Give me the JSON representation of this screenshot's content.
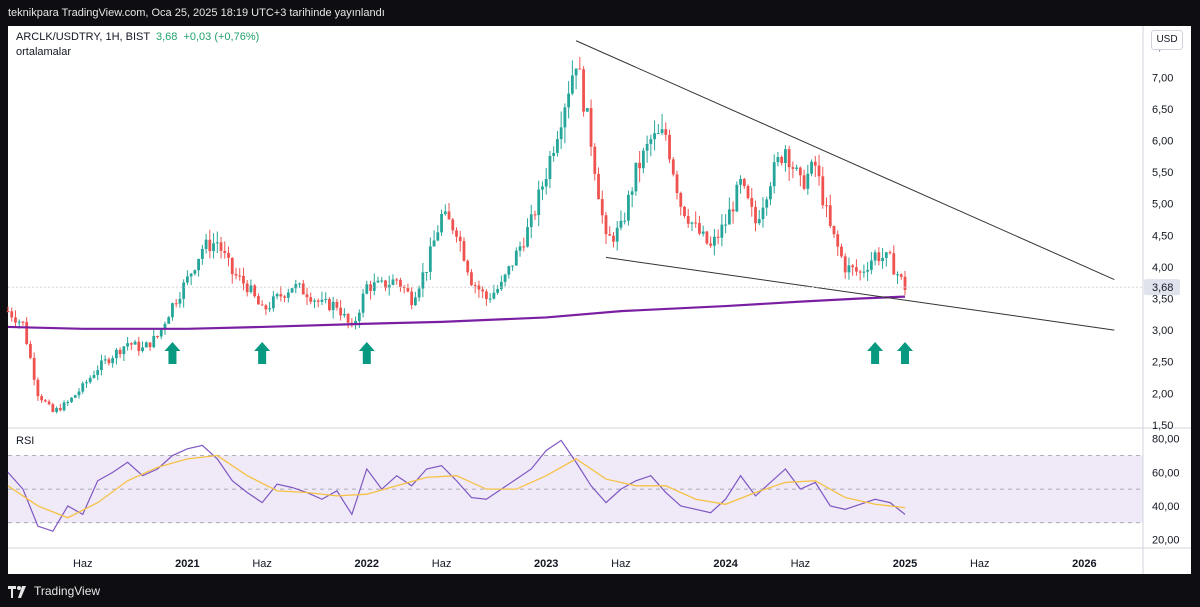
{
  "header": {
    "published": "teknikpara TradingView.com, Oca 25, 2025 18:19 UTC+3 tarihinde yayınlandı"
  },
  "legend": {
    "symbol": "ARCLK/USDTRY, 1H, BIST",
    "last": "3,68",
    "change": "+0,03 (+0,76%)",
    "indicator": "ortalamalar"
  },
  "currency": "USD",
  "rsi_label": "RSI",
  "footer": {
    "brand": "TradingView",
    "logo_icon": "tradingview-logo-icon"
  },
  "colors": {
    "up": "#26a69a",
    "down": "#ef5350",
    "ma": "#7b1fa2",
    "rsi": "#7e57c2",
    "rsi_ma": "#f6c244",
    "band": "#efe9f8",
    "arrow": "#089981",
    "trendline": "#333333"
  },
  "chart_data": [
    {
      "type": "candlestick",
      "title": "ARCLK/USDTRY",
      "ylim": [
        1.45,
        7.75
      ],
      "y_ticks": [
        "7,50",
        "7,00",
        "6,50",
        "6,00",
        "5,50",
        "5,00",
        "4,50",
        "4,00",
        "3,50",
        "3,00",
        "2,50",
        "2,00",
        "1,50"
      ],
      "y_tick_values": [
        7.5,
        7.0,
        6.5,
        6.0,
        5.5,
        5.0,
        4.5,
        4.0,
        3.5,
        3.0,
        2.5,
        2.0,
        1.5
      ],
      "x_ticks": [
        "Haz",
        "2021",
        "Haz",
        "2022",
        "Haz",
        "2023",
        "Haz",
        "2024",
        "Haz",
        "2025",
        "Haz",
        "2026"
      ],
      "x_tick_dates": [
        "2020-06",
        "2021-01",
        "2021-06",
        "2022-01",
        "2022-06",
        "2023-01",
        "2023-06",
        "2024-01",
        "2024-06",
        "2025-01",
        "2025-06",
        "2026-01"
      ],
      "last_price": 3.68,
      "last_price_label": "3,68",
      "price_path": [
        [
          "2020-01",
          3.3
        ],
        [
          "2020-02",
          3.1
        ],
        [
          "2020-03",
          2.0
        ],
        [
          "2020-04",
          1.7
        ],
        [
          "2020-05",
          1.85
        ],
        [
          "2020-06",
          2.1
        ],
        [
          "2020-07",
          2.4
        ],
        [
          "2020-08",
          2.6
        ],
        [
          "2020-09",
          2.8
        ],
        [
          "2020-10",
          2.7
        ],
        [
          "2020-11",
          2.9
        ],
        [
          "2020-12",
          3.4
        ],
        [
          "2021-01",
          3.8
        ],
        [
          "2021-02",
          4.3
        ],
        [
          "2021-03",
          4.4
        ],
        [
          "2021-04",
          3.9
        ],
        [
          "2021-05",
          3.7
        ],
        [
          "2021-06",
          3.3
        ],
        [
          "2021-07",
          3.5
        ],
        [
          "2021-08",
          3.7
        ],
        [
          "2021-09",
          3.6
        ],
        [
          "2021-10",
          3.4
        ],
        [
          "2021-11",
          3.4
        ],
        [
          "2021-12",
          3.0
        ],
        [
          "2022-01",
          3.7
        ],
        [
          "2022-02",
          3.7
        ],
        [
          "2022-03",
          3.8
        ],
        [
          "2022-04",
          3.5
        ],
        [
          "2022-05",
          4.0
        ],
        [
          "2022-06",
          4.8
        ],
        [
          "2022-07",
          4.6
        ],
        [
          "2022-08",
          3.8
        ],
        [
          "2022-09",
          3.5
        ],
        [
          "2022-10",
          3.7
        ],
        [
          "2022-11",
          4.2
        ],
        [
          "2022-12",
          4.7
        ],
        [
          "2023-01",
          5.5
        ],
        [
          "2023-02",
          6.4
        ],
        [
          "2023-03",
          7.3
        ],
        [
          "2023-04",
          6.0
        ],
        [
          "2023-05",
          4.4
        ],
        [
          "2023-06",
          4.6
        ],
        [
          "2023-07",
          5.5
        ],
        [
          "2023-08",
          6.0
        ],
        [
          "2023-09",
          6.1
        ],
        [
          "2023-10",
          5.0
        ],
        [
          "2023-11",
          4.6
        ],
        [
          "2023-12",
          4.3
        ],
        [
          "2024-01",
          4.7
        ],
        [
          "2024-02",
          5.3
        ],
        [
          "2024-03",
          4.7
        ],
        [
          "2024-04",
          5.4
        ],
        [
          "2024-05",
          5.9
        ],
        [
          "2024-06",
          5.3
        ],
        [
          "2024-07",
          5.6
        ],
        [
          "2024-08",
          4.6
        ],
        [
          "2024-09",
          4.0
        ],
        [
          "2024-10",
          3.9
        ],
        [
          "2024-11",
          4.2
        ],
        [
          "2024-12",
          4.1
        ],
        [
          "2025-01",
          3.68
        ]
      ],
      "moving_average": [
        [
          "2020-01",
          3.05
        ],
        [
          "2020-06",
          3.02
        ],
        [
          "2021-01",
          3.02
        ],
        [
          "2021-06",
          3.05
        ],
        [
          "2022-01",
          3.1
        ],
        [
          "2022-06",
          3.13
        ],
        [
          "2023-01",
          3.2
        ],
        [
          "2023-06",
          3.3
        ],
        [
          "2024-01",
          3.38
        ],
        [
          "2024-06",
          3.45
        ],
        [
          "2024-10",
          3.5
        ],
        [
          "2025-01",
          3.53
        ]
      ],
      "trendlines": [
        {
          "from": [
            "2023-03",
            7.58
          ],
          "to": [
            "2026-03",
            3.8
          ]
        },
        {
          "from": [
            "2023-05",
            4.15
          ],
          "to": [
            "2026-03",
            3.0
          ]
        }
      ],
      "up_arrows": [
        "2020-12",
        "2021-06",
        "2022-01",
        "2024-11",
        "2025-01"
      ]
    },
    {
      "type": "line",
      "title": "RSI",
      "ylim": [
        15,
        84
      ],
      "y_ticks": [
        "80,00",
        "60,00",
        "40,00",
        "20,00"
      ],
      "y_tick_values": [
        80,
        60,
        40,
        20
      ],
      "band": [
        30,
        70
      ],
      "mid": 50,
      "series": [
        {
          "name": "RSI",
          "values": [
            [
              "2020-01",
              60
            ],
            [
              "2020-02",
              50
            ],
            [
              "2020-03",
              28
            ],
            [
              "2020-04",
              25
            ],
            [
              "2020-05",
              40
            ],
            [
              "2020-06",
              35
            ],
            [
              "2020-07",
              55
            ],
            [
              "2020-08",
              60
            ],
            [
              "2020-09",
              66
            ],
            [
              "2020-10",
              58
            ],
            [
              "2020-11",
              62
            ],
            [
              "2020-12",
              70
            ],
            [
              "2021-01",
              74
            ],
            [
              "2021-02",
              76
            ],
            [
              "2021-03",
              68
            ],
            [
              "2021-04",
              55
            ],
            [
              "2021-05",
              48
            ],
            [
              "2021-06",
              42
            ],
            [
              "2021-07",
              53
            ],
            [
              "2021-08",
              51
            ],
            [
              "2021-09",
              48
            ],
            [
              "2021-10",
              44
            ],
            [
              "2021-11",
              49
            ],
            [
              "2021-12",
              35
            ],
            [
              "2022-01",
              62
            ],
            [
              "2022-02",
              50
            ],
            [
              "2022-03",
              58
            ],
            [
              "2022-04",
              52
            ],
            [
              "2022-05",
              62
            ],
            [
              "2022-06",
              64
            ],
            [
              "2022-07",
              55
            ],
            [
              "2022-08",
              45
            ],
            [
              "2022-09",
              44
            ],
            [
              "2022-10",
              50
            ],
            [
              "2022-11",
              56
            ],
            [
              "2022-12",
              62
            ],
            [
              "2023-01",
              73
            ],
            [
              "2023-02",
              79
            ],
            [
              "2023-03",
              66
            ],
            [
              "2023-04",
              52
            ],
            [
              "2023-05",
              42
            ],
            [
              "2023-06",
              50
            ],
            [
              "2023-07",
              55
            ],
            [
              "2023-08",
              58
            ],
            [
              "2023-09",
              48
            ],
            [
              "2023-10",
              40
            ],
            [
              "2023-11",
              38
            ],
            [
              "2023-12",
              36
            ],
            [
              "2024-01",
              44
            ],
            [
              "2024-02",
              58
            ],
            [
              "2024-03",
              46
            ],
            [
              "2024-04",
              54
            ],
            [
              "2024-05",
              62
            ],
            [
              "2024-06",
              50
            ],
            [
              "2024-07",
              54
            ],
            [
              "2024-08",
              40
            ],
            [
              "2024-09",
              38
            ],
            [
              "2024-10",
              41
            ],
            [
              "2024-11",
              44
            ],
            [
              "2024-12",
              42
            ],
            [
              "2025-01",
              35
            ]
          ]
        },
        {
          "name": "RSI MA",
          "values": [
            [
              "2020-01",
              52
            ],
            [
              "2020-03",
              40
            ],
            [
              "2020-05",
              33
            ],
            [
              "2020-07",
              42
            ],
            [
              "2020-09",
              55
            ],
            [
              "2020-11",
              63
            ],
            [
              "2021-01",
              68
            ],
            [
              "2021-03",
              70
            ],
            [
              "2021-05",
              58
            ],
            [
              "2021-07",
              49
            ],
            [
              "2021-09",
              48
            ],
            [
              "2021-11",
              46
            ],
            [
              "2022-01",
              47
            ],
            [
              "2022-03",
              52
            ],
            [
              "2022-05",
              57
            ],
            [
              "2022-07",
              58
            ],
            [
              "2022-09",
              50
            ],
            [
              "2022-11",
              50
            ],
            [
              "2023-01",
              58
            ],
            [
              "2023-03",
              68
            ],
            [
              "2023-05",
              56
            ],
            [
              "2023-07",
              52
            ],
            [
              "2023-09",
              52
            ],
            [
              "2023-11",
              44
            ],
            [
              "2024-01",
              41
            ],
            [
              "2024-03",
              48
            ],
            [
              "2024-05",
              54
            ],
            [
              "2024-07",
              55
            ],
            [
              "2024-09",
              45
            ],
            [
              "2024-11",
              41
            ],
            [
              "2025-01",
              39
            ]
          ]
        }
      ]
    }
  ]
}
